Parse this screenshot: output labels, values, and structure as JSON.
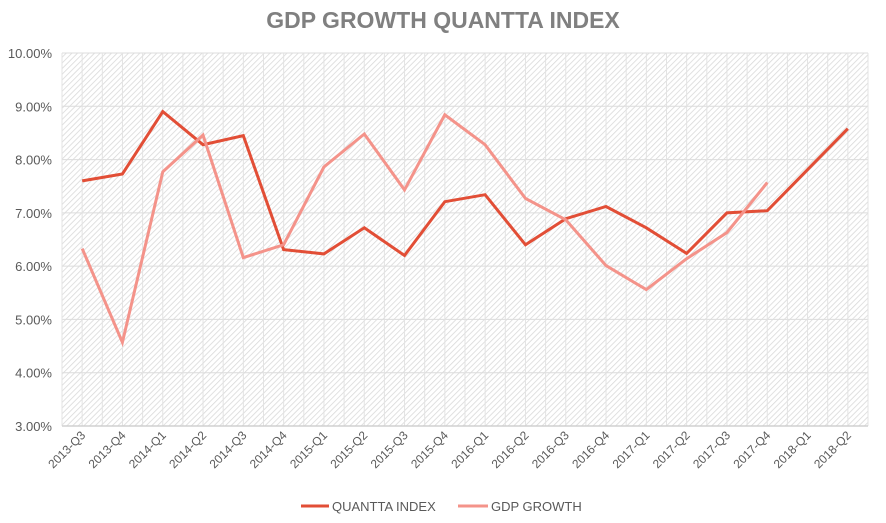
{
  "chart_data": {
    "type": "line",
    "title": "GDP GROWTH QUANTTA INDEX",
    "xlabel": "",
    "ylabel": "",
    "ylim": [
      0.03,
      0.1
    ],
    "yticks": [
      0.03,
      0.04,
      0.05,
      0.06,
      0.07,
      0.08,
      0.09,
      0.1
    ],
    "ytick_labels": [
      "3.00%",
      "4.00%",
      "5.00%",
      "6.00%",
      "7.00%",
      "8.00%",
      "9.00%",
      "10.00%"
    ],
    "grid": true,
    "legend_position": "bottom",
    "categories": [
      "2013-Q3",
      "2013-Q4",
      "2014-Q1",
      "2014-Q2",
      "2014-Q3",
      "2014-Q4",
      "2015-Q1",
      "2015-Q2",
      "2015-Q3",
      "2015-Q4",
      "2016-Q1",
      "2016-Q2",
      "2016-Q3",
      "2016-Q4",
      "2017-Q1",
      "2017-Q2",
      "2017-Q3",
      "2017-Q4",
      "2018-Q1",
      "2018-Q2"
    ],
    "series": [
      {
        "name": "QUANTTA INDEX",
        "color": "#E24E36",
        "values": [
          0.076,
          0.0773,
          0.089,
          0.0828,
          0.0845,
          0.0631,
          0.0623,
          0.0672,
          0.062,
          0.0721,
          0.0734,
          0.064,
          0.0689,
          0.0712,
          0.0672,
          0.0624,
          0.07,
          0.0704,
          0.0781,
          0.0858
        ]
      },
      {
        "name": "GDP GROWTH",
        "color": "#F4938A",
        "values": [
          0.0633,
          0.0457,
          0.0777,
          0.0846,
          0.0616,
          0.064,
          0.0786,
          0.0848,
          0.0743,
          0.0884,
          0.0828,
          0.0727,
          0.0687,
          0.0601,
          0.0556,
          0.0614,
          0.0663,
          0.0757,
          null,
          null
        ]
      }
    ]
  }
}
